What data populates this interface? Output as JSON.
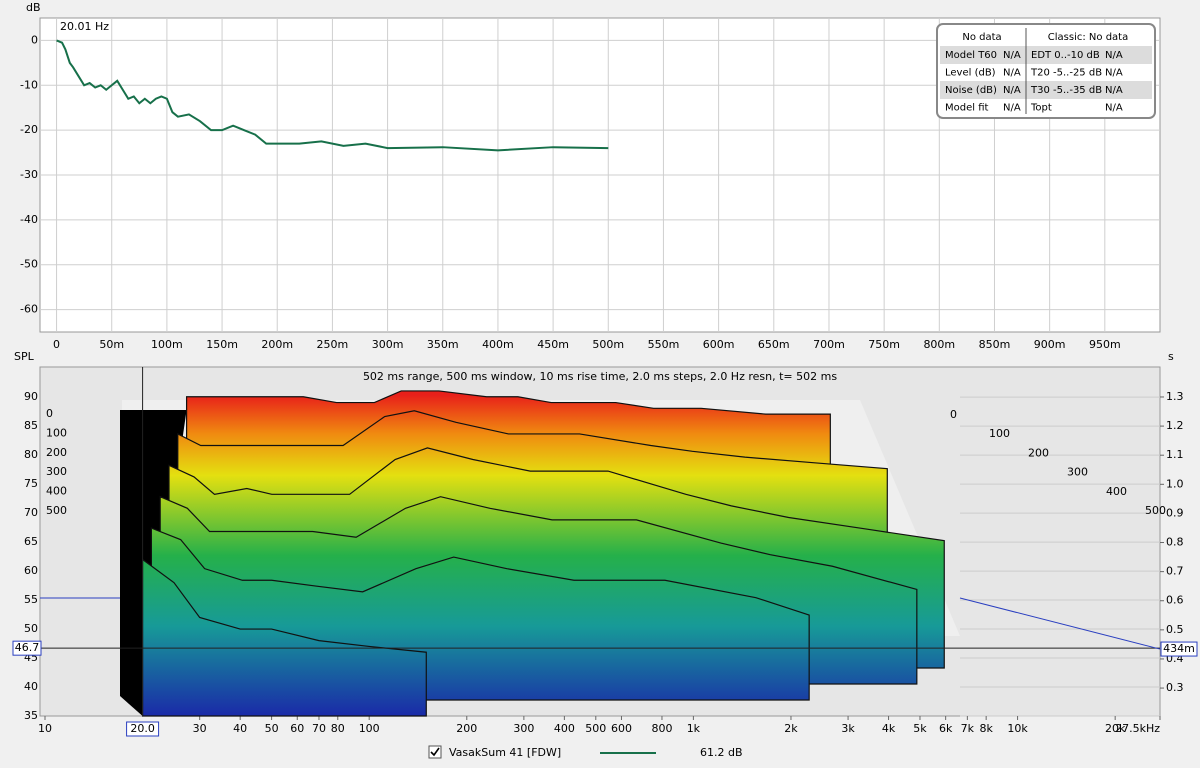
{
  "chart_data": [
    {
      "type": "line",
      "ylabel": "dB",
      "annotation": "20.01 Hz",
      "xlim": [
        -0.015,
        1.0
      ],
      "xticks": [
        0,
        {
          "value": 0.05,
          "label": "50m"
        },
        {
          "value": 0.1,
          "label": "100m"
        },
        {
          "value": 0.15,
          "label": "150m"
        },
        {
          "value": 0.2,
          "label": "200m"
        },
        {
          "value": 0.25,
          "label": "250m"
        },
        {
          "value": 0.3,
          "label": "300m"
        },
        {
          "value": 0.35,
          "label": "350m"
        },
        {
          "value": 0.4,
          "label": "400m"
        },
        {
          "value": 0.45,
          "label": "450m"
        },
        {
          "value": 0.5,
          "label": "500m"
        },
        {
          "value": 0.55,
          "label": "550m"
        },
        {
          "value": 0.6,
          "label": "600m"
        },
        {
          "value": 0.65,
          "label": "650m"
        },
        {
          "value": 0.7,
          "label": "700m"
        },
        {
          "value": 0.75,
          "label": "750m"
        },
        {
          "value": 0.8,
          "label": "800m"
        },
        {
          "value": 0.85,
          "label": "850m"
        },
        {
          "value": 0.9,
          "label": "900m"
        },
        {
          "value": 0.95,
          "label": "950m"
        }
      ],
      "ylim": [
        -65,
        5
      ],
      "yticks": [
        0,
        -10,
        -20,
        -30,
        -40,
        -50,
        -60
      ],
      "grid": true,
      "x": [
        0,
        0.005,
        0.008,
        0.012,
        0.015,
        0.02,
        0.025,
        0.03,
        0.035,
        0.04,
        0.045,
        0.05,
        0.055,
        0.06,
        0.065,
        0.07,
        0.075,
        0.08,
        0.085,
        0.09,
        0.095,
        0.1,
        0.105,
        0.11,
        0.12,
        0.13,
        0.14,
        0.15,
        0.16,
        0.17,
        0.18,
        0.19,
        0.2,
        0.22,
        0.24,
        0.26,
        0.28,
        0.3,
        0.35,
        0.4,
        0.45,
        0.5
      ],
      "series": [
        {
          "name": "VasakSum 41 [FDW]",
          "color": "#17704a",
          "values": [
            0,
            -0.5,
            -2,
            -5,
            -6,
            -8,
            -10,
            -9.5,
            -10.5,
            -10,
            -11,
            -10,
            -9,
            -11,
            -13,
            -12.5,
            -14,
            -13,
            -14,
            -13,
            -12.5,
            -13,
            -16,
            -17,
            -16.5,
            -18,
            -20,
            -20,
            -19,
            -20,
            -21,
            -23,
            -23,
            -23,
            -22.5,
            -23.5,
            -23,
            -24,
            -23.8,
            -24.5,
            -23.8,
            -24
          ]
        }
      ],
      "legend_value": "61.2 dB",
      "table": {
        "header": [
          "No data",
          "Classic: No data"
        ],
        "rows": [
          [
            "Model T60",
            "N/A",
            "EDT  0..-10 dB",
            "N/A"
          ],
          [
            "Level (dB)",
            "N/A",
            "T20 -5..-25 dB",
            "N/A"
          ],
          [
            "Noise (dB)",
            "N/A",
            "T30 -5..-35 dB",
            "N/A"
          ],
          [
            "Model fit",
            "N/A",
            "Topt",
            "N/A"
          ]
        ]
      }
    },
    {
      "type": "waterfall",
      "subtitle": "502 ms range, 500 ms window, 10 ms rise time, 2.0 ms steps,  2.0 Hz resn, t= 502 ms",
      "ylabel": "SPL",
      "y2label": "s",
      "xlog": true,
      "xlim": [
        10,
        27500
      ],
      "xticks": [
        10,
        30,
        40,
        50,
        60,
        70,
        80,
        100,
        200,
        300,
        400,
        500,
        600,
        800,
        {
          "value": 1000,
          "label": "1k"
        },
        {
          "value": 2000,
          "label": "2k"
        },
        {
          "value": 3000,
          "label": "3k"
        },
        {
          "value": 4000,
          "label": "4k"
        },
        {
          "value": 5000,
          "label": "5k"
        },
        {
          "value": 6000,
          "label": "6k"
        },
        {
          "value": 7000,
          "label": "7k"
        },
        {
          "value": 8000,
          "label": "8k"
        },
        {
          "value": 10000,
          "label": "10k"
        },
        {
          "value": 20000,
          "label": "20k"
        },
        {
          "value": 27500,
          "label": "27.5kHz"
        }
      ],
      "ylim": [
        35,
        95.2
      ],
      "yticks": [
        35,
        40,
        45,
        50,
        55,
        60,
        65,
        70,
        75,
        80,
        85,
        90
      ],
      "y2lim": [
        0.204,
        1.403
      ],
      "y2ticks": [
        0.3,
        0.4,
        0.5,
        0.6,
        0.7,
        0.8,
        0.9,
        {
          "value": 1,
          "label": "1.0"
        },
        1.1,
        1.2,
        1.3
      ],
      "zlim": [
        0,
        500
      ],
      "zticks": [
        0,
        100,
        200,
        300,
        400,
        500
      ],
      "cursor": {
        "x": {
          "value": 20,
          "label": "20.0"
        },
        "y": 46.7,
        "y2": {
          "value": 0.434,
          "label": "434m"
        }
      },
      "x": [
        20,
        25,
        30,
        40,
        50,
        70,
        100,
        150,
        200,
        300,
        500,
        700,
        1000,
        2000,
        3000,
        5000,
        10000,
        20000
      ],
      "series": [
        {
          "name": "0",
          "values": [
            88,
            88,
            88,
            88,
            88,
            88,
            87,
            87,
            89,
            89,
            88,
            88,
            87,
            87,
            86,
            86,
            85,
            85
          ]
        },
        {
          "name": "100",
          "values": [
            82,
            80,
            80,
            80,
            80,
            80,
            80,
            85,
            86,
            84,
            82,
            82,
            82,
            80,
            79,
            78,
            77,
            76
          ]
        },
        {
          "name": "200",
          "values": [
            77,
            75,
            72,
            73,
            72,
            72,
            72,
            78,
            80,
            78,
            76,
            76,
            76,
            72,
            70,
            68,
            66,
            64
          ]
        },
        {
          "name": "300",
          "values": [
            72,
            70,
            66,
            66,
            66,
            66,
            65,
            70,
            72,
            70,
            68,
            68,
            68,
            64,
            62,
            60,
            56,
            null
          ]
        },
        {
          "name": "400",
          "values": [
            67,
            65,
            60,
            58,
            58,
            57,
            56,
            60,
            62,
            60,
            58,
            58,
            58,
            55,
            52,
            null,
            null,
            null
          ]
        },
        {
          "name": "500",
          "values": [
            62,
            58,
            52,
            50,
            50,
            48,
            47,
            46,
            null,
            null,
            null,
            null,
            null,
            null,
            null,
            null,
            null,
            null
          ]
        }
      ]
    }
  ]
}
